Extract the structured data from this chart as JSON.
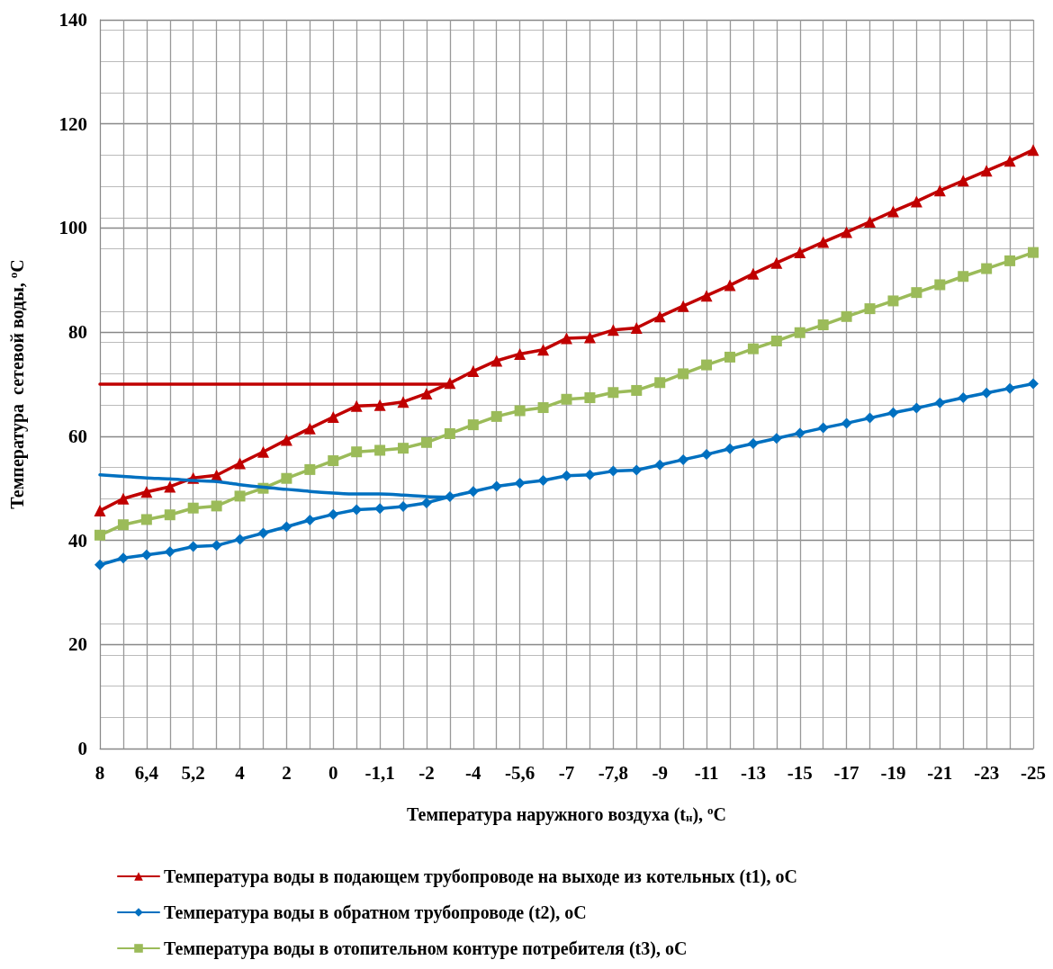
{
  "chart_data": {
    "type": "line",
    "xlabel": "Температура наружного воздуха (t$_{н}$), $^{о}$С",
    "ylabel": "Температура  сетевой воды, $^{о}$С",
    "categories": [
      "8",
      null,
      "6,4",
      null,
      "5,2",
      null,
      "4",
      null,
      "2",
      null,
      "0",
      null,
      "-1,1",
      null,
      "-2",
      null,
      "-4",
      null,
      "-5,6",
      null,
      "-7",
      null,
      "-7,8",
      null,
      "-9",
      null,
      "-11",
      null,
      "-13",
      null,
      "-15",
      null,
      "-17",
      null,
      "-19",
      null,
      "-21",
      null,
      "-23",
      null,
      "-25"
    ],
    "ylim": [
      0,
      140
    ],
    "yticks": [
      0,
      20,
      40,
      60,
      80,
      100,
      120,
      140
    ],
    "grid": true,
    "legend": "bottom",
    "series": [
      {
        "name": "Температура воды в подающем трубопроводе на выходе из котельных (t1), оС",
        "color": "#c00000",
        "marker": "triangle",
        "values": [
          45.7,
          48,
          49.3,
          50.3,
          52,
          52.5,
          54.8,
          57,
          59.3,
          61.5,
          63.7,
          65.8,
          66,
          66.6,
          68.2,
          70.2,
          72.5,
          74.5,
          75.8,
          76.6,
          78.8,
          79,
          80.4,
          80.8,
          83,
          85,
          87,
          89,
          91.2,
          93.3,
          95.3,
          97.3,
          99.2,
          101.2,
          103.2,
          105.1,
          107.2,
          109.1,
          111,
          112.9,
          115
        ]
      },
      {
        "name": "Температура воды в обратном трубопроводе (t2), оС",
        "color": "#0070c0",
        "marker": "diamond",
        "values": [
          35.3,
          36.6,
          37.2,
          37.8,
          38.8,
          39,
          40.2,
          41.4,
          42.6,
          43.9,
          45,
          45.9,
          46.1,
          46.5,
          47.2,
          48.4,
          49.4,
          50.4,
          51,
          51.5,
          52.4,
          52.6,
          53.3,
          53.5,
          54.5,
          55.5,
          56.5,
          57.6,
          58.6,
          59.6,
          60.6,
          61.6,
          62.5,
          63.5,
          64.5,
          65.4,
          66.4,
          67.4,
          68.3,
          69.2,
          70.1
        ]
      },
      {
        "name": "Температура воды в отопительном контуре потребителя (t3), оС",
        "color": "#9bbb59",
        "marker": "square",
        "values": [
          41,
          43,
          44,
          44.9,
          46.2,
          46.6,
          48.5,
          50,
          51.9,
          53.6,
          55.3,
          57,
          57.3,
          57.7,
          58.8,
          60.5,
          62.2,
          63.8,
          64.9,
          65.5,
          67.1,
          67.4,
          68.4,
          68.8,
          70.3,
          72,
          73.7,
          75.2,
          76.8,
          78.3,
          79.9,
          81.4,
          83,
          84.5,
          86,
          87.6,
          89.1,
          90.7,
          92.2,
          93.7,
          95.3
        ]
      },
      {
        "color": "#c00000",
        "marker": "none",
        "values": [
          70,
          70,
          70,
          70,
          70,
          70,
          70,
          70,
          70,
          70,
          70,
          70,
          70,
          70,
          70,
          70,
          null,
          null,
          null,
          null,
          null,
          null,
          null,
          null,
          null,
          null,
          null,
          null,
          null,
          null,
          null,
          null,
          null,
          null,
          null,
          null,
          null,
          null,
          null,
          null,
          null
        ]
      },
      {
        "color": "#0070c0",
        "marker": "none",
        "values": [
          52.6,
          52.3,
          52,
          51.8,
          51.5,
          51.3,
          50.7,
          50.2,
          49.8,
          49.4,
          49.1,
          48.9,
          48.9,
          48.7,
          48.4,
          48.3,
          null,
          null,
          null,
          null,
          null,
          null,
          null,
          null,
          null,
          null,
          null,
          null,
          null,
          null,
          null,
          null,
          null,
          null,
          null,
          null,
          null,
          null,
          null,
          null,
          null
        ]
      }
    ]
  }
}
